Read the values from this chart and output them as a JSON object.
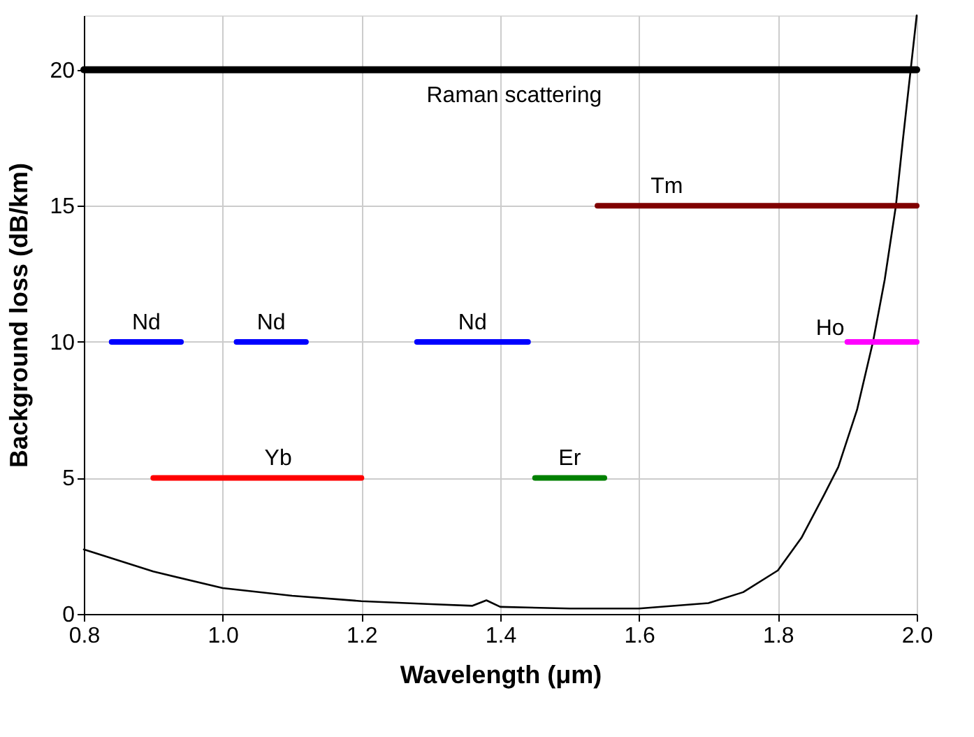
{
  "chart_data": {
    "type": "line",
    "xlabel": "Wavelength (μm)",
    "ylabel": "Background loss (dB/km)",
    "xlim": [
      0.8,
      2.0
    ],
    "xticks": [
      0.8,
      {
        "value": 1,
        "label": "1.0"
      },
      1.2,
      1.4,
      1.6,
      1.8,
      {
        "value": 2,
        "label": "2.0"
      }
    ],
    "ylim": [
      0,
      22
    ],
    "yticks": [
      0,
      5,
      10,
      15,
      20
    ],
    "grid": true,
    "marker": "none",
    "line_style": "solid",
    "series": [
      {
        "color": "#000000",
        "x": [
          0.8,
          0.9,
          1.0,
          1.1,
          1.2,
          1.3,
          1.36,
          1.38,
          1.4,
          1.5,
          1.6,
          1.7,
          1.75,
          1.8,
          1.834,
          1.867,
          1.887,
          1.914,
          1.937,
          1.954,
          1.97,
          1.98,
          2.0
        ],
        "values": [
          2.37,
          1.56,
          0.95,
          0.67,
          0.47,
          0.36,
          0.3,
          0.5,
          0.26,
          0.2,
          0.2,
          0.4,
          0.8,
          1.6,
          2.8,
          4.4,
          5.4,
          7.5,
          10.0,
          12.3,
          15.0,
          17.4,
          22
        ]
      },
      {
        "color": "#000000",
        "x": [
          0.8,
          2.0
        ],
        "values": [
          20,
          20
        ]
      },
      {
        "color": "#800000",
        "x": [
          1.54,
          2.0
        ],
        "values": [
          15,
          15
        ]
      },
      {
        "color": "#0000ff",
        "x": [
          0.84,
          0.94
        ],
        "values": [
          10,
          10
        ]
      },
      {
        "color": "#0000ff",
        "x": [
          1.02,
          1.12
        ],
        "values": [
          10,
          10
        ]
      },
      {
        "color": "#0000ff",
        "x": [
          1.28,
          1.44
        ],
        "values": [
          10,
          10
        ]
      },
      {
        "color": "#ff00ff",
        "x": [
          1.9,
          2.0
        ],
        "values": [
          10,
          10
        ]
      },
      {
        "color": "#ff0000",
        "x": [
          0.9,
          1.2
        ],
        "values": [
          5,
          5
        ]
      },
      {
        "color": "#008000",
        "x": [
          1.45,
          1.55
        ],
        "values": [
          5,
          5
        ]
      }
    ],
    "annotations": [
      {
        "text": "Raman scattering",
        "x": 1.42,
        "y": 20
      },
      {
        "text": "Tm",
        "x": 1.64,
        "y": 15
      },
      {
        "text": "Nd",
        "x": 0.89,
        "y": 10
      },
      {
        "text": "Nd",
        "x": 1.07,
        "y": 10
      },
      {
        "text": "Nd",
        "x": 1.36,
        "y": 10
      },
      {
        "text": "Ho",
        "x": 1.9,
        "y": 10
      },
      {
        "text": "Yb",
        "x": 1.08,
        "y": 5
      },
      {
        "text": "Er",
        "x": 1.5,
        "y": 5
      }
    ]
  }
}
